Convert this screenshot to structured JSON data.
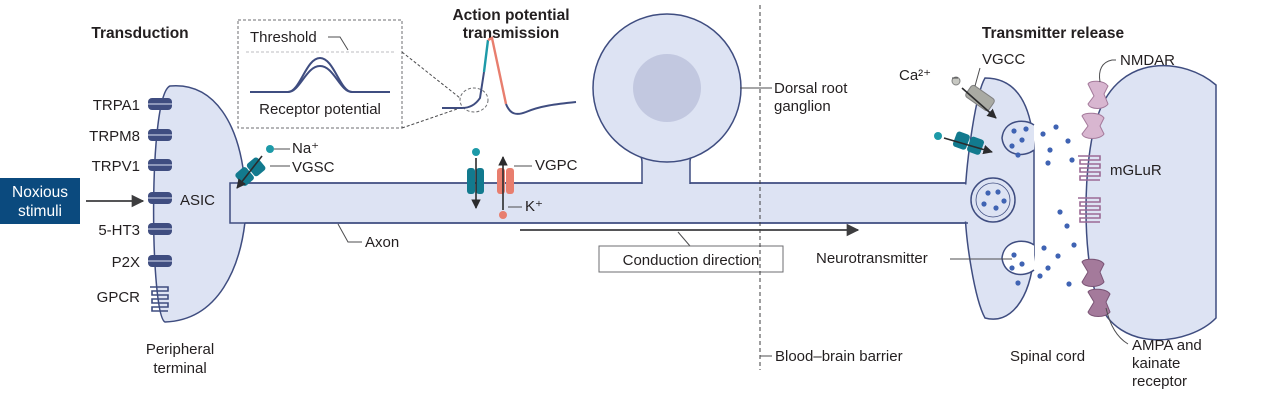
{
  "headers": {
    "transduction": "Transduction",
    "ap_line1": "Action potential",
    "ap_line2": "transmission",
    "transmitter_release": "Transmitter release"
  },
  "stimulus": {
    "line1": "Noxious",
    "line2": "stimuli"
  },
  "receptors": [
    "TRPA1",
    "TRPM8",
    "TRPV1",
    "ASIC",
    "5-HT3",
    "P2X",
    "GPCR"
  ],
  "peripheral_terminal": {
    "line1": "Peripheral",
    "line2": "terminal"
  },
  "inset": {
    "threshold": "Threshold",
    "receptor_potential": "Receptor potential"
  },
  "ions": {
    "sodium": "Na⁺",
    "potassium": "K⁺",
    "calcium": "Ca²⁺"
  },
  "channels": {
    "vgsc": "VGSC",
    "vgpc": "VGPC",
    "vgcc": "VGCC"
  },
  "axon": "Axon",
  "conduction_direction": "Conduction direction",
  "drg": {
    "line1": "Dorsal root",
    "line2": "ganglion"
  },
  "bbb": "Blood–brain barrier",
  "synapse": {
    "nmdar": "NMDAR",
    "mglur": "mGLuR",
    "neurotransmitter": "Neurotransmitter",
    "spinal_cord": "Spinal cord",
    "ampa_line1": "AMPA and",
    "ampa_line2": "kainate",
    "ampa_line3": "receptor"
  },
  "colors": {
    "neuron_fill": "#dde3f3",
    "neuron_outline": "#3f4d80",
    "stimulus_box": "#0b4a7e",
    "channel_teal": "#127a8e",
    "channel_salmon": "#e87e6e",
    "receptor_pink": "#d8b6d0",
    "vesicle_dot": "#3f63b3"
  }
}
